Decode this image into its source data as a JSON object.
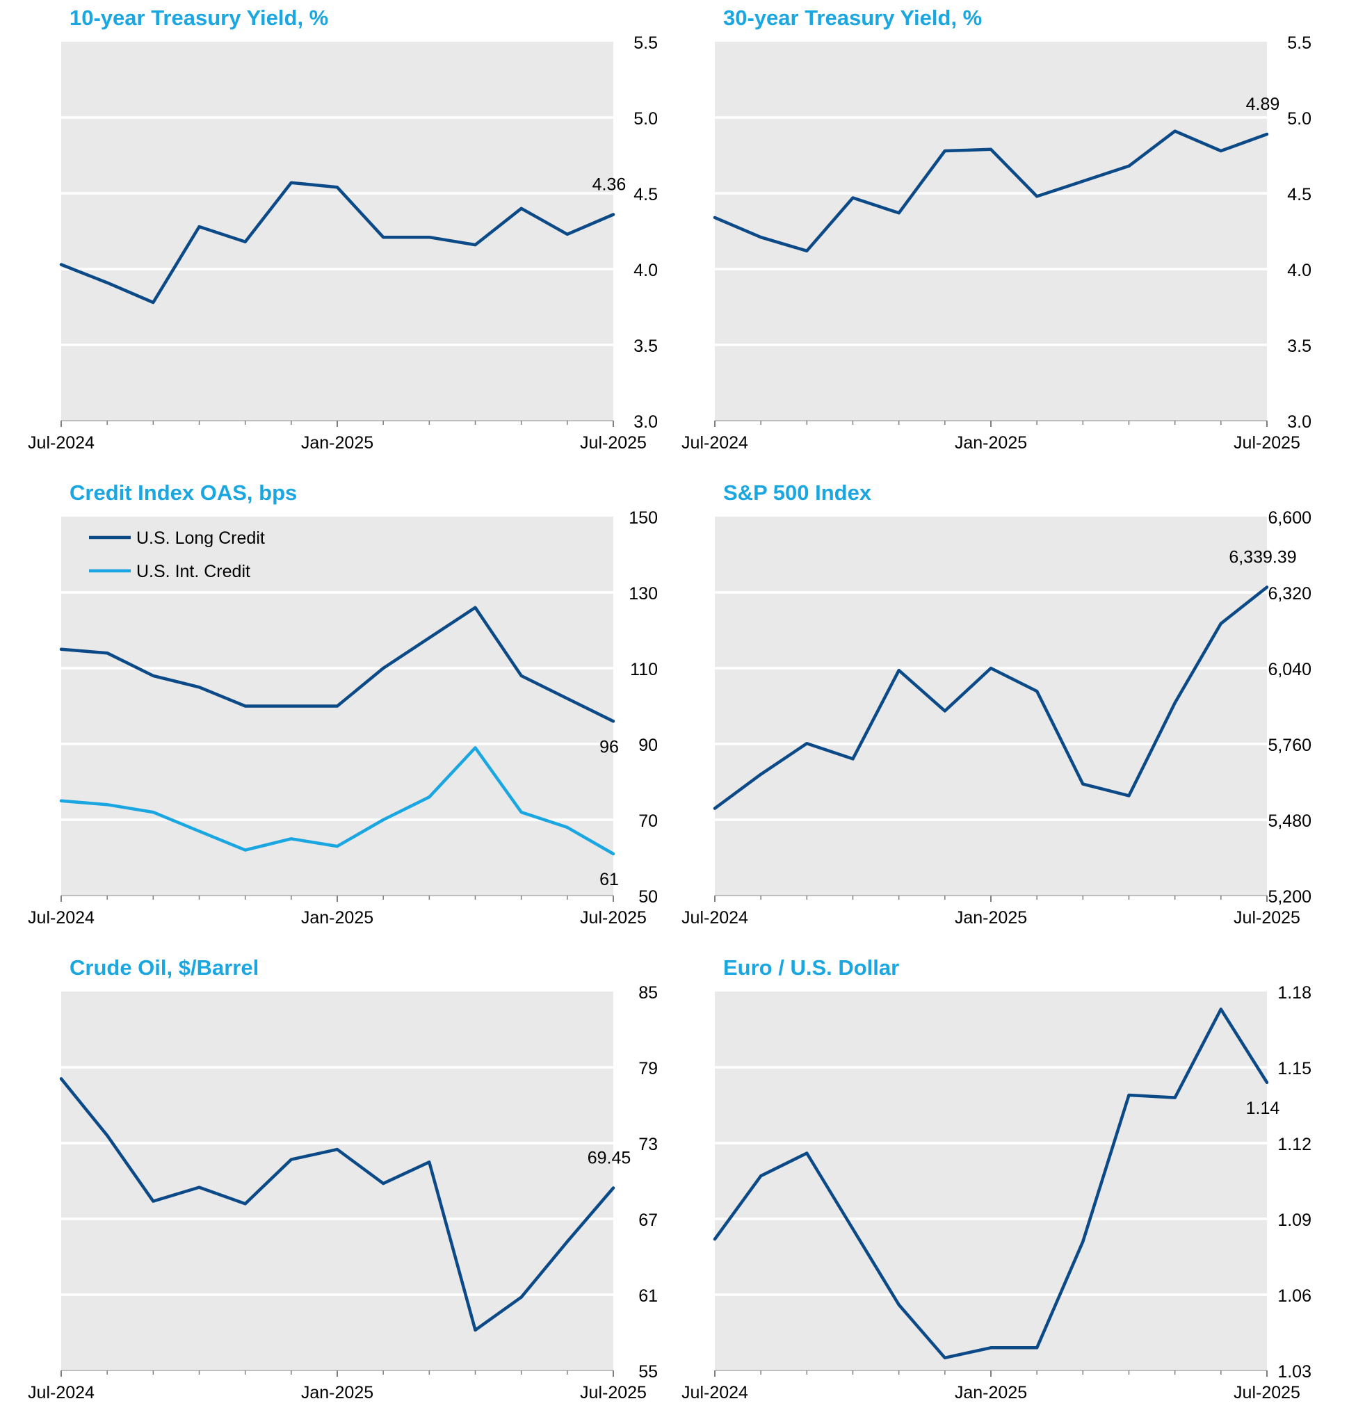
{
  "colors": {
    "title": "#1aa6e0",
    "series_dark": "#0b4a87",
    "series_light": "#1aa6e0",
    "plot_bg": "#e9e9e9",
    "grid": "#ffffff",
    "text": "#000000"
  },
  "chart_data": [
    {
      "type": "line",
      "title": "10-year Treasury Yield, %",
      "x": [
        "Jul-2024",
        "Aug-2024",
        "Sep-2024",
        "Oct-2024",
        "Nov-2024",
        "Dec-2024",
        "Jan-2025",
        "Feb-2025",
        "Mar-2025",
        "Apr-2025",
        "May-2025",
        "Jun-2025",
        "Jul-2025"
      ],
      "xtick_labels": [
        {
          "label": "Jul-2024",
          "index": 0
        },
        {
          "label": "Jan-2025",
          "index": 6
        },
        {
          "label": "Jul-2025",
          "index": 12
        }
      ],
      "series": [
        {
          "name": "10-year Treasury Yield",
          "color": "dark",
          "values": [
            4.03,
            3.91,
            3.78,
            4.28,
            4.18,
            4.57,
            4.54,
            4.21,
            4.21,
            4.16,
            4.4,
            4.23,
            4.36
          ],
          "end_label": "4.36",
          "end_label_pos": "above"
        }
      ],
      "ylim": [
        3.0,
        5.5
      ],
      "yticks": [
        "3.0",
        "3.5",
        "4.0",
        "4.5",
        "5.0",
        "5.5"
      ],
      "ytick_values": [
        3.0,
        3.5,
        4.0,
        4.5,
        5.0,
        5.5
      ],
      "legend": null
    },
    {
      "type": "line",
      "title": "30-year Treasury Yield, %",
      "x": [
        "Jul-2024",
        "Aug-2024",
        "Sep-2024",
        "Oct-2024",
        "Nov-2024",
        "Dec-2024",
        "Jan-2025",
        "Feb-2025",
        "Mar-2025",
        "Apr-2025",
        "May-2025",
        "Jun-2025",
        "Jul-2025"
      ],
      "xtick_labels": [
        {
          "label": "Jul-2024",
          "index": 0
        },
        {
          "label": "Jan-2025",
          "index": 6
        },
        {
          "label": "Jul-2025",
          "index": 12
        }
      ],
      "series": [
        {
          "name": "30-year Treasury Yield",
          "color": "dark",
          "values": [
            4.34,
            4.21,
            4.12,
            4.47,
            4.37,
            4.78,
            4.79,
            4.48,
            4.58,
            4.68,
            4.91,
            4.78,
            4.89
          ],
          "end_label": "4.89",
          "end_label_pos": "above"
        }
      ],
      "ylim": [
        3.0,
        5.5
      ],
      "yticks": [
        "3.0",
        "3.5",
        "4.0",
        "4.5",
        "5.0",
        "5.5"
      ],
      "ytick_values": [
        3.0,
        3.5,
        4.0,
        4.5,
        5.0,
        5.5
      ],
      "legend": null
    },
    {
      "type": "line",
      "title": "Credit Index OAS, bps",
      "x": [
        "Jul-2024",
        "Aug-2024",
        "Sep-2024",
        "Oct-2024",
        "Nov-2024",
        "Dec-2024",
        "Jan-2025",
        "Feb-2025",
        "Mar-2025",
        "Apr-2025",
        "May-2025",
        "Jun-2025",
        "Jul-2025"
      ],
      "xtick_labels": [
        {
          "label": "Jul-2024",
          "index": 0
        },
        {
          "label": "Jan-2025",
          "index": 6
        },
        {
          "label": "Jul-2025",
          "index": 12
        }
      ],
      "series": [
        {
          "name": "U.S. Long Credit",
          "color": "dark",
          "values": [
            115,
            114,
            108,
            105,
            100,
            100,
            100,
            110,
            118,
            126,
            108,
            102,
            96
          ],
          "end_label": "96",
          "end_label_pos": "below"
        },
        {
          "name": "U.S. Int. Credit",
          "color": "light",
          "values": [
            75,
            74,
            72,
            67,
            62,
            65,
            63,
            70,
            76,
            89,
            72,
            68,
            61
          ],
          "end_label": "61",
          "end_label_pos": "below"
        }
      ],
      "ylim": [
        50,
        150
      ],
      "yticks": [
        "50",
        "70",
        "90",
        "110",
        "130",
        "150"
      ],
      "ytick_values": [
        50,
        70,
        90,
        110,
        130,
        150
      ],
      "legend": {
        "placement": "top-left",
        "entries": [
          "U.S. Long Credit",
          "U.S. Int. Credit"
        ]
      }
    },
    {
      "type": "line",
      "title": "S&P 500 Index",
      "x": [
        "Jul-2024",
        "Aug-2024",
        "Sep-2024",
        "Oct-2024",
        "Nov-2024",
        "Dec-2024",
        "Jan-2025",
        "Feb-2025",
        "Mar-2025",
        "Apr-2025",
        "May-2025",
        "Jun-2025",
        "Jul-2025"
      ],
      "xtick_labels": [
        {
          "label": "Jul-2024",
          "index": 0
        },
        {
          "label": "Jan-2025",
          "index": 6
        },
        {
          "label": "Jul-2025",
          "index": 12
        }
      ],
      "series": [
        {
          "name": "S&P 500 Index",
          "color": "dark",
          "values": [
            5522,
            5648,
            5762,
            5705,
            6032,
            5882,
            6040,
            5955,
            5612,
            5569,
            5912,
            6205,
            6339.39
          ],
          "end_label": "6,339.39",
          "end_label_pos": "above"
        }
      ],
      "ylim": [
        5200,
        6600
      ],
      "yticks": [
        "5,200",
        "5,480",
        "5,760",
        "6,040",
        "6,320",
        "6,600"
      ],
      "ytick_values": [
        5200,
        5480,
        5760,
        6040,
        6320,
        6600
      ],
      "legend": null
    },
    {
      "type": "line",
      "title": "Crude Oil, $/Barrel",
      "x": [
        "Jul-2024",
        "Aug-2024",
        "Sep-2024",
        "Oct-2024",
        "Nov-2024",
        "Dec-2024",
        "Jan-2025",
        "Feb-2025",
        "Mar-2025",
        "Apr-2025",
        "May-2025",
        "Jun-2025",
        "Jul-2025"
      ],
      "xtick_labels": [
        {
          "label": "Jul-2024",
          "index": 0
        },
        {
          "label": "Jan-2025",
          "index": 6
        },
        {
          "label": "Jul-2025",
          "index": 12
        }
      ],
      "series": [
        {
          "name": "Crude Oil",
          "color": "dark",
          "values": [
            78.1,
            73.6,
            68.4,
            69.5,
            68.2,
            71.7,
            72.5,
            69.8,
            71.5,
            58.2,
            60.8,
            65.2,
            69.45
          ],
          "end_label": "69.45",
          "end_label_pos": "above"
        }
      ],
      "ylim": [
        55,
        85
      ],
      "yticks": [
        "55",
        "61",
        "67",
        "73",
        "79",
        "85"
      ],
      "ytick_values": [
        55,
        61,
        67,
        73,
        79,
        85
      ],
      "legend": null
    },
    {
      "type": "line",
      "title": "Euro / U.S. Dollar",
      "x": [
        "Jul-2024",
        "Aug-2024",
        "Sep-2024",
        "Oct-2024",
        "Nov-2024",
        "Dec-2024",
        "Jan-2025",
        "Feb-2025",
        "Mar-2025",
        "Apr-2025",
        "May-2025",
        "Jun-2025",
        "Jul-2025"
      ],
      "xtick_labels": [
        {
          "label": "Jul-2024",
          "index": 0
        },
        {
          "label": "Jan-2025",
          "index": 6
        },
        {
          "label": "Jul-2025",
          "index": 12
        }
      ],
      "series": [
        {
          "name": "Euro / U.S. Dollar",
          "color": "dark",
          "values": [
            1.082,
            1.107,
            1.116,
            1.086,
            1.056,
            1.035,
            1.039,
            1.039,
            1.081,
            1.139,
            1.138,
            1.173,
            1.144
          ],
          "end_label": "1.14",
          "end_label_pos": "below"
        }
      ],
      "ylim": [
        1.03,
        1.18
      ],
      "yticks": [
        "1.03",
        "1.06",
        "1.09",
        "1.12",
        "1.15",
        "1.18"
      ],
      "ytick_values": [
        1.03,
        1.06,
        1.09,
        1.12,
        1.15,
        1.18
      ],
      "legend": null
    }
  ]
}
